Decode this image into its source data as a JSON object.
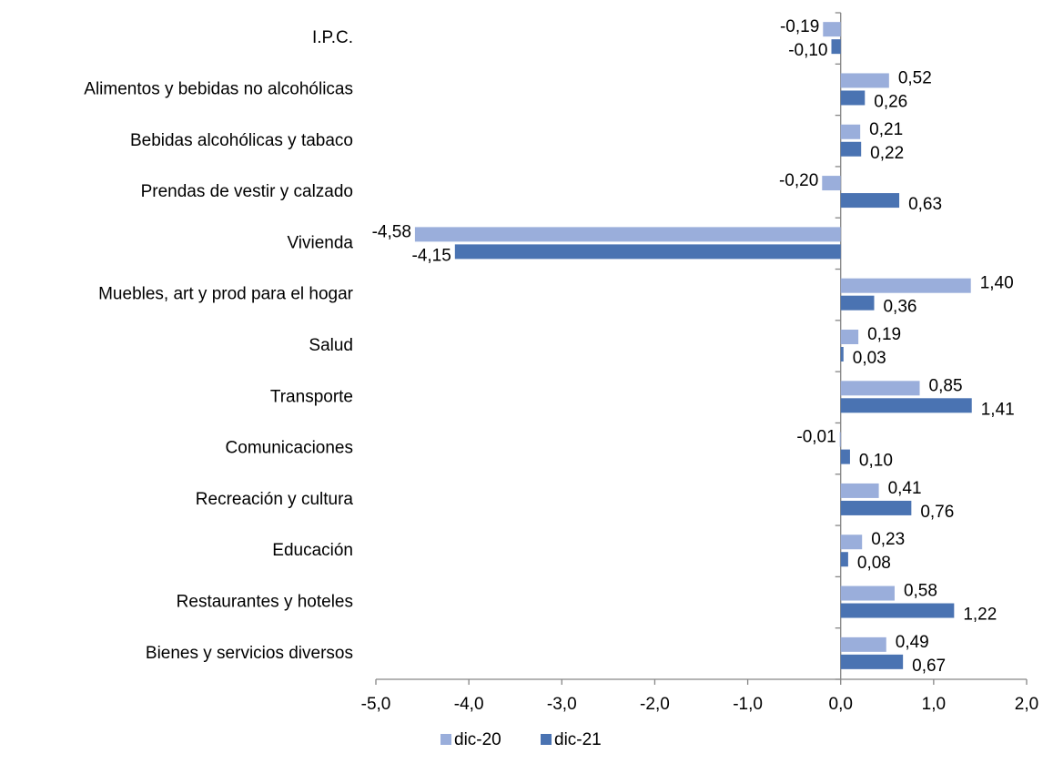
{
  "chart_data": {
    "type": "bar",
    "orientation": "horizontal",
    "categories": [
      "I.P.C.",
      "Alimentos y bebidas no alcohólicas",
      "Bebidas alcohólicas y tabaco",
      "Prendas de vestir y calzado",
      "Vivienda",
      "Muebles, art y prod para el hogar",
      "Salud",
      "Transporte",
      "Comunicaciones",
      "Recreación y cultura",
      "Educación",
      "Restaurantes y hoteles",
      "Bienes y servicios diversos"
    ],
    "series": [
      {
        "name": "dic-20",
        "color": "#9aaedb",
        "values": [
          -0.19,
          0.52,
          0.21,
          -0.2,
          -4.58,
          1.4,
          0.19,
          0.85,
          -0.01,
          0.41,
          0.23,
          0.58,
          0.49
        ],
        "value_labels": [
          "-0,19",
          "0,52",
          "0,21",
          "-0,20",
          "-4,58",
          "1,40",
          "0,19",
          "0,85",
          "-0,01",
          "0,41",
          "0,23",
          "0,58",
          "0,49"
        ]
      },
      {
        "name": "dic-21",
        "color": "#4a73b2",
        "values": [
          -0.1,
          0.26,
          0.22,
          0.63,
          -4.15,
          0.36,
          0.03,
          1.41,
          0.1,
          0.76,
          0.08,
          1.22,
          0.67
        ],
        "value_labels": [
          "-0,10",
          "0,26",
          "0,22",
          "0,63",
          "-4,15",
          "0,36",
          "0,03",
          "1,41",
          "0,10",
          "0,76",
          "0,08",
          "1,22",
          "0,67"
        ]
      }
    ],
    "xlim": [
      -5,
      2
    ],
    "xticks": [
      {
        "value": -5,
        "label": "-5,0"
      },
      {
        "value": -4,
        "label": "-4,0"
      },
      {
        "value": -3,
        "label": "-3,0"
      },
      {
        "value": -2,
        "label": "-2,0"
      },
      {
        "value": -1,
        "label": "-1,0"
      },
      {
        "value": 0,
        "label": "0,0"
      },
      {
        "value": 1,
        "label": "1,0"
      },
      {
        "value": 2,
        "label": "2,0"
      }
    ],
    "legend": "bottom"
  }
}
